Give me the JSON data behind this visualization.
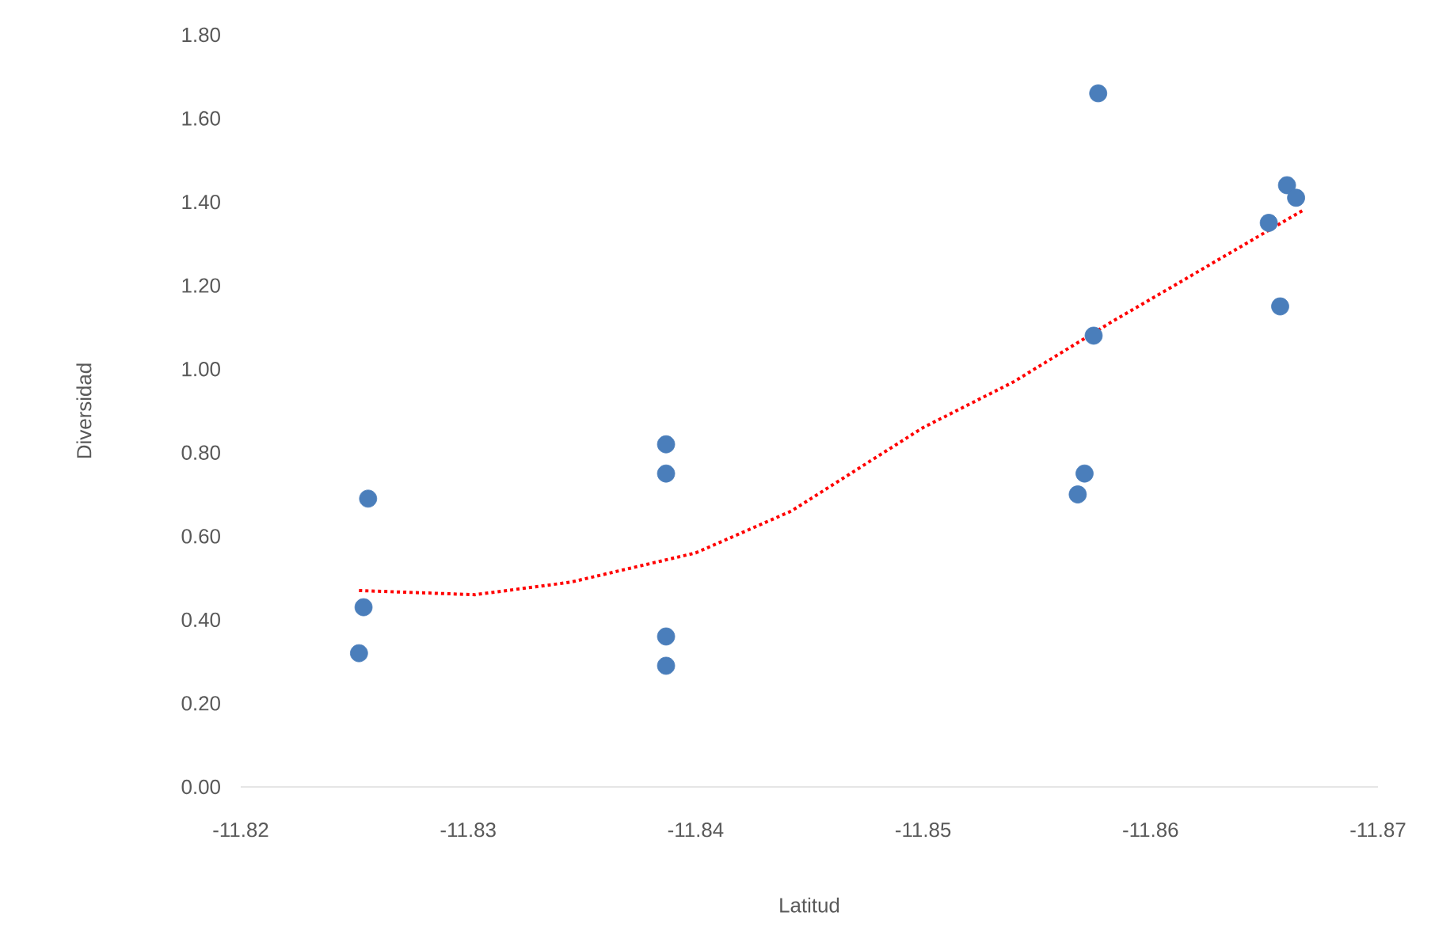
{
  "chart_data": {
    "type": "scatter",
    "xlabel": "Latitud",
    "ylabel": "Diversidad",
    "xlim": [
      -11.82,
      -11.87
    ],
    "xticks": [
      -11.82,
      -11.83,
      -11.84,
      -11.85,
      -11.86,
      -11.87
    ],
    "ylim": [
      0,
      1.8
    ],
    "yticks": [
      {
        "value": 0,
        "label": "0.00"
      },
      {
        "value": 0.2,
        "label": "0.20"
      },
      {
        "value": 0.4,
        "label": "0.40"
      },
      {
        "value": 0.6,
        "label": "0.60"
      },
      {
        "value": 0.8,
        "label": "0.80"
      },
      {
        "value": 1.0,
        "label": "1.00"
      },
      {
        "value": 1.2,
        "label": "1.20"
      },
      {
        "value": 1.4,
        "label": "1.40"
      },
      {
        "value": 1.6,
        "label": "1.60"
      },
      {
        "value": 1.8,
        "label": "1.80"
      }
    ],
    "series": [
      {
        "type": "scatter",
        "color": "#4a7ebb",
        "marker": "circle",
        "x": [
          -11.8256,
          -11.8254,
          -11.8252,
          -11.8387,
          -11.8387,
          -11.8387,
          -11.8387,
          -11.8577,
          -11.8575,
          -11.8571,
          -11.8568,
          -11.8652,
          -11.866,
          -11.8664,
          -11.8657
        ],
        "values": [
          0.69,
          0.43,
          0.32,
          0.82,
          0.75,
          0.36,
          0.29,
          1.66,
          1.08,
          0.75,
          0.7,
          1.35,
          1.44,
          1.41,
          1.15
        ]
      },
      {
        "type": "line",
        "color": "#ff0000",
        "marker": "none",
        "line_style": "dotted",
        "x": [
          -11.8252,
          -11.8303,
          -11.8345,
          -11.84,
          -11.8442,
          -11.85,
          -11.854,
          -11.8582,
          -11.8623,
          -11.8667
        ],
        "values": [
          0.47,
          0.46,
          0.49,
          0.56,
          0.66,
          0.86,
          0.97,
          1.11,
          1.24,
          1.38
        ]
      }
    ]
  }
}
